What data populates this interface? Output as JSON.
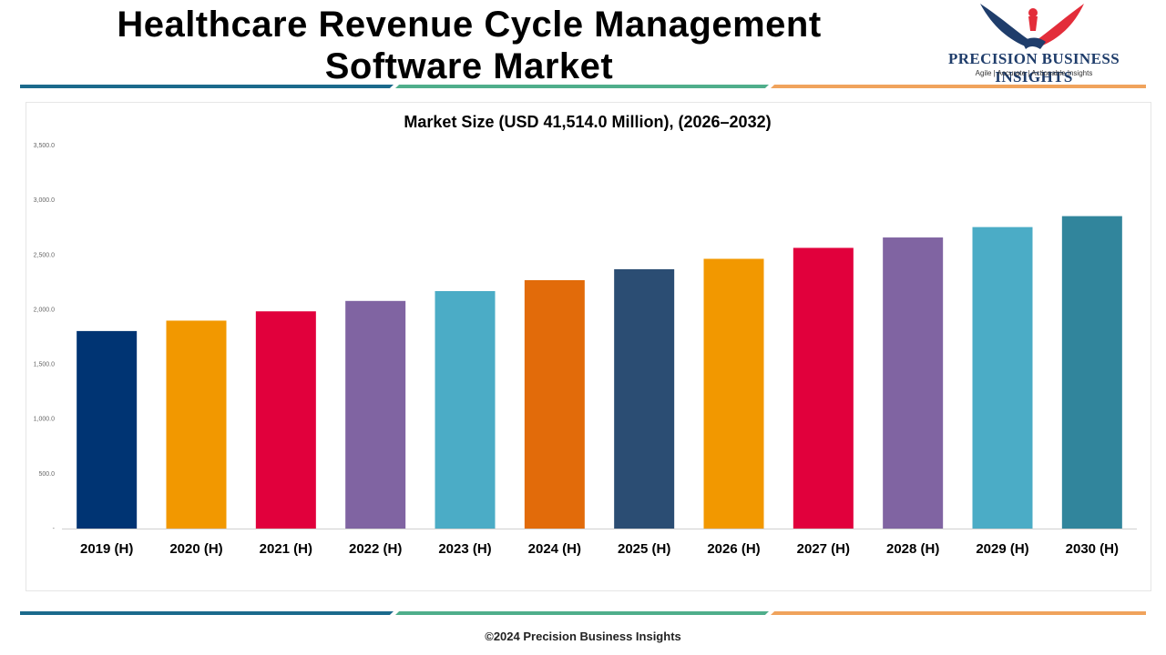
{
  "header": {
    "title": "Healthcare Revenue Cycle Management Software Market"
  },
  "brand": {
    "name": "PRECISION BUSINESS INSIGHTS",
    "tagline": "Agile | Accurate | Actionable Insights",
    "logo_icon": "eagle-handshake-icon",
    "colors": {
      "navy": "#1f3d6b",
      "red": "#e32d3a"
    }
  },
  "stripes": {
    "colors": [
      "#1b6a8c",
      "#4fae8b",
      "#f0a35c"
    ]
  },
  "footer": {
    "copyright": "©2024 Precision Business Insights"
  },
  "chart_data": {
    "type": "bar",
    "title": "Market Size (USD 41,514.0 Million), (2026–2032)",
    "xlabel": "",
    "ylabel": "",
    "ylim": [
      0,
      3500
    ],
    "yticks": [
      0,
      500,
      1000,
      1500,
      2000,
      2500,
      3000,
      3500
    ],
    "ytick_labels": [
      "-",
      "500.0",
      "1,000.0",
      "1,500.0",
      "2,000.0",
      "2,500.0",
      "3,000.0",
      "3,500.0"
    ],
    "grid": false,
    "legend": "none",
    "categories": [
      "2019 (H)",
      "2020 (H)",
      "2021 (H)",
      "2022 (H)",
      "2023 (H)",
      "2024 (H)",
      "2025 (H)",
      "2026 (H)",
      "2027 (H)",
      "2028 (H)",
      "2029 (H)",
      "2030 (H)"
    ],
    "values": [
      1805,
      1900,
      1985,
      2080,
      2170,
      2270,
      2370,
      2465,
      2565,
      2660,
      2755,
      2855
    ],
    "colors": [
      "#003473",
      "#f29800",
      "#e1003c",
      "#8064a2",
      "#4bacc6",
      "#e26b0a",
      "#2b4d73",
      "#f29800",
      "#e1003c",
      "#8064a2",
      "#4bacc6",
      "#31859c"
    ]
  }
}
